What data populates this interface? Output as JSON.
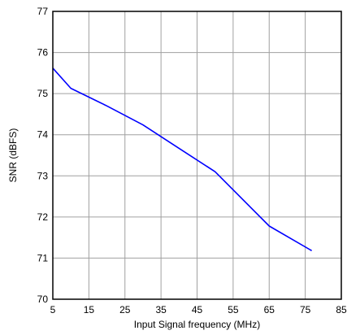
{
  "chart_data": {
    "type": "line",
    "title": "",
    "xlabel": "Input Signal frequency (MHz)",
    "ylabel": "SNR (dBFS)",
    "xlim": [
      5,
      85
    ],
    "ylim": [
      70,
      77
    ],
    "x_ticks": [
      5,
      15,
      25,
      35,
      45,
      55,
      65,
      75,
      85
    ],
    "y_ticks": [
      70,
      71,
      72,
      73,
      74,
      75,
      76,
      77
    ],
    "grid": true,
    "series": [
      {
        "color": "#0000ff",
        "x": [
          5,
          10,
          20,
          30,
          40,
          50,
          65,
          76.8
        ],
        "y": [
          75.62,
          75.13,
          74.7,
          74.24,
          73.67,
          73.1,
          71.78,
          71.18
        ]
      }
    ]
  }
}
